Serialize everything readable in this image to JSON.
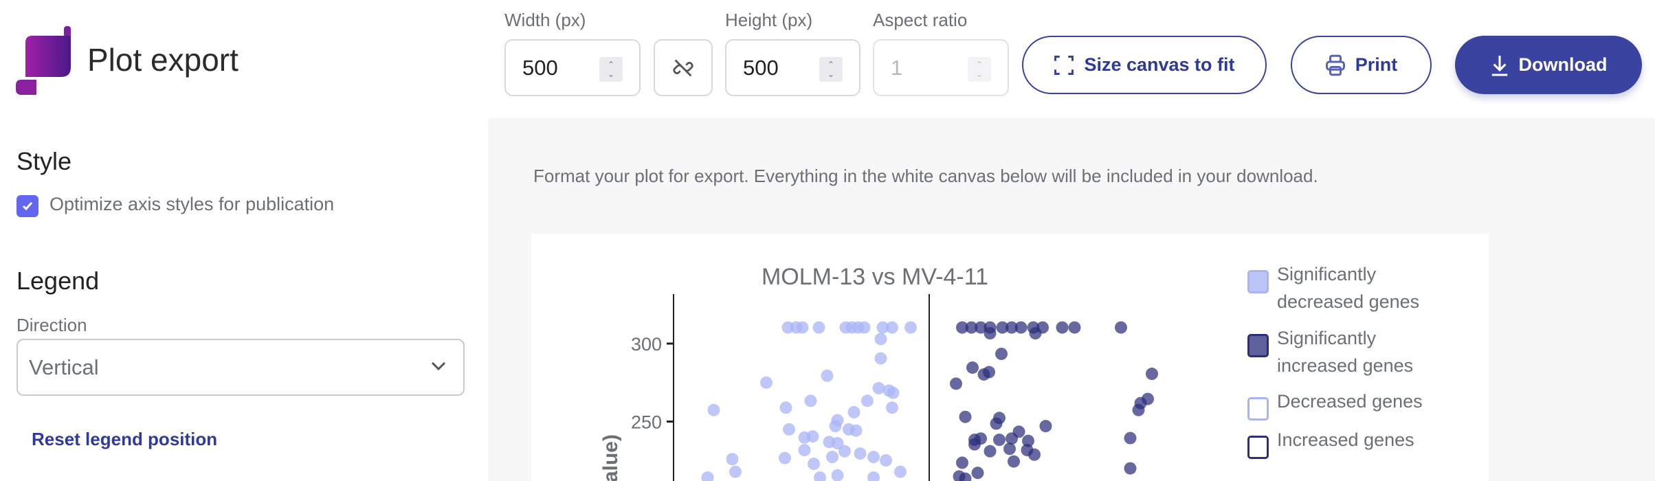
{
  "header": {
    "title": "Plot export",
    "logo": "app-logo"
  },
  "toolbar": {
    "width_label": "Width (px)",
    "width_value": "500",
    "height_label": "Height (px)",
    "height_value": "500",
    "aspect_label": "Aspect ratio",
    "aspect_value": "1",
    "link_icon": "unlink-icon",
    "size_canvas_label": "Size canvas to fit",
    "print_label": "Print",
    "download_label": "Download"
  },
  "sidebar": {
    "style_heading": "Style",
    "optimize_label": "Optimize axis styles for publication",
    "optimize_checked": true,
    "legend_heading": "Legend",
    "direction_label": "Direction",
    "direction_value": "Vertical",
    "reset_label": "Reset legend position"
  },
  "main": {
    "instructions": "Format your plot for export. Everything in the white canvas below will be included in your download."
  },
  "colors": {
    "accent": "#3a44a0",
    "checkbox": "#6366f1",
    "sig_decreased": "#a9b4f5",
    "sig_increased": "#2b2e7a",
    "background": "#f7f7f7"
  },
  "chart_data": {
    "type": "scatter",
    "title": "MOLM-13 vs MV-4-11",
    "ylabel": "value)",
    "yticks": [
      250,
      300
    ],
    "legend": {
      "placement": "right",
      "entries": [
        "Significantly decreased genes",
        "Significantly increased genes",
        "Decreased genes",
        "Increased genes"
      ]
    },
    "series": [
      {
        "name": "Significantly decreased genes",
        "color": "#a9b4f5",
        "points": [
          [
            -1.37,
            310.3
          ],
          [
            -1.29,
            310.3
          ],
          [
            -1.23,
            310.3
          ],
          [
            -1.07,
            310.3
          ],
          [
            -0.81,
            310.3
          ],
          [
            -0.75,
            310.3
          ],
          [
            -0.69,
            310.3
          ],
          [
            -0.63,
            310.3
          ],
          [
            -0.45,
            310.3
          ],
          [
            -0.36,
            310.3
          ],
          [
            -0.18,
            310.3
          ],
          [
            -0.47,
            302.9
          ],
          [
            -0.47,
            290.5
          ],
          [
            -1.58,
            275.0
          ],
          [
            -0.99,
            279.4
          ],
          [
            -0.49,
            271.4
          ],
          [
            -0.39,
            269.9
          ],
          [
            -0.35,
            268.4
          ],
          [
            -1.15,
            263.3
          ],
          [
            -0.6,
            263.3
          ],
          [
            -1.39,
            258.9
          ],
          [
            -0.36,
            258.9
          ],
          [
            -2.09,
            257.4
          ],
          [
            -0.73,
            256.0
          ],
          [
            -0.89,
            250.8
          ],
          [
            -0.91,
            247.1
          ],
          [
            -1.36,
            245.0
          ],
          [
            -0.78,
            245.0
          ],
          [
            -0.71,
            244.2
          ],
          [
            -1.21,
            239.8
          ],
          [
            -1.13,
            240.5
          ],
          [
            -0.97,
            236.9
          ],
          [
            -0.89,
            236.1
          ],
          [
            -1.21,
            231.7
          ],
          [
            -0.82,
            231.0
          ],
          [
            -0.67,
            229.5
          ],
          [
            -1.91,
            225.9
          ],
          [
            -1.4,
            226.6
          ],
          [
            -0.94,
            227.3
          ],
          [
            -0.54,
            227.3
          ],
          [
            -0.42,
            225.1
          ],
          [
            -1.12,
            222.9
          ],
          [
            -1.88,
            217.8
          ],
          [
            -0.28,
            217.8
          ],
          [
            -2.15,
            214.1
          ],
          [
            -1.06,
            214.1
          ],
          [
            -0.89,
            215.5
          ],
          [
            -0.54,
            214.1
          ]
        ]
      },
      {
        "name": "Significantly increased genes",
        "color": "#2b2e7a",
        "points": [
          [
            0.32,
            310.3
          ],
          [
            0.41,
            310.3
          ],
          [
            0.5,
            310.3
          ],
          [
            0.59,
            310.3
          ],
          [
            0.71,
            310.3
          ],
          [
            0.8,
            310.3
          ],
          [
            0.89,
            310.3
          ],
          [
            1.01,
            310.3
          ],
          [
            1.1,
            310.3
          ],
          [
            1.29,
            310.3
          ],
          [
            1.41,
            310.3
          ],
          [
            1.86,
            310.3
          ],
          [
            0.59,
            306.6
          ],
          [
            1.03,
            306.6
          ],
          [
            0.7,
            293.4
          ],
          [
            0.42,
            284.6
          ],
          [
            0.58,
            281.7
          ],
          [
            0.53,
            280.2
          ],
          [
            0.26,
            274.3
          ],
          [
            2.16,
            280.6
          ],
          [
            2.12,
            264.5
          ],
          [
            2.05,
            261.8
          ],
          [
            2.03,
            257.4
          ],
          [
            0.35,
            253.0
          ],
          [
            0.68,
            252.3
          ],
          [
            0.65,
            248.7
          ],
          [
            1.13,
            247.1
          ],
          [
            0.87,
            243.5
          ],
          [
            0.44,
            238.3
          ],
          [
            0.5,
            239.1
          ],
          [
            0.68,
            238.3
          ],
          [
            0.8,
            239.1
          ],
          [
            0.96,
            237.6
          ],
          [
            1.95,
            239.4
          ],
          [
            0.44,
            235.4
          ],
          [
            0.59,
            231.0
          ],
          [
            0.78,
            232.5
          ],
          [
            0.95,
            231.7
          ],
          [
            1.02,
            228.8
          ],
          [
            0.32,
            223.6
          ],
          [
            0.82,
            224.4
          ],
          [
            1.95,
            220.0
          ],
          [
            0.47,
            217.1
          ],
          [
            0.29,
            214.8
          ],
          [
            0.35,
            213.4
          ]
        ]
      }
    ]
  }
}
